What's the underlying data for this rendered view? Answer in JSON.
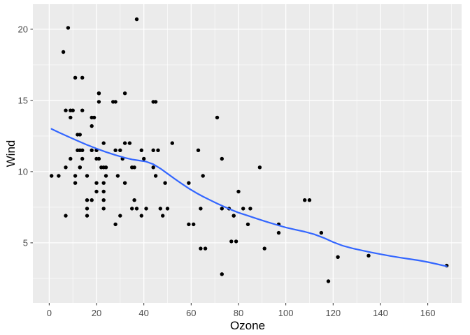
{
  "figure": {
    "x_title": "Ozone",
    "y_title": "Wind",
    "colors": {
      "background": "#FFFFFF",
      "panel_background": "#EBEBEB",
      "grid_major": "#FFFFFF",
      "grid_minor": "#F5F5F5",
      "point": "#000000",
      "smooth_line": "#3366FF",
      "tick_mark": "#333333",
      "tick_label": "#4D4D4D"
    }
  },
  "chart_data": {
    "type": "scatter",
    "title": "",
    "xlabel": "Ozone",
    "ylabel": "Wind",
    "legend": "none",
    "grid": "on",
    "x_ticks": [
      0,
      20,
      40,
      60,
      80,
      100,
      120,
      140,
      160
    ],
    "x_minor_ticks": [
      10,
      30,
      50,
      70,
      90,
      110,
      130,
      150,
      170
    ],
    "y_ticks": [
      5,
      10,
      15,
      20
    ],
    "y_minor_ticks": [
      2.5,
      7.5,
      12.5,
      17.5
    ],
    "xlim": [
      -6.9,
      174.3
    ],
    "ylim": [
      0.78,
      21.76
    ],
    "points": [
      [
        41,
        7.4
      ],
      [
        36,
        8.0
      ],
      [
        12,
        12.6
      ],
      [
        18,
        11.5
      ],
      [
        28,
        14.9
      ],
      [
        23,
        8.6
      ],
      [
        19,
        13.8
      ],
      [
        8,
        20.1
      ],
      [
        7,
        6.9
      ],
      [
        16,
        9.7
      ],
      [
        11,
        9.2
      ],
      [
        14,
        10.9
      ],
      [
        18,
        13.2
      ],
      [
        14,
        11.5
      ],
      [
        34,
        12.0
      ],
      [
        6,
        18.4
      ],
      [
        30,
        11.5
      ],
      [
        11,
        9.7
      ],
      [
        1,
        9.7
      ],
      [
        11,
        16.6
      ],
      [
        4,
        9.7
      ],
      [
        32,
        12.0
      ],
      [
        23,
        12.0
      ],
      [
        45,
        14.9
      ],
      [
        115,
        5.7
      ],
      [
        37,
        7.4
      ],
      [
        29,
        9.7
      ],
      [
        71,
        13.8
      ],
      [
        39,
        11.5
      ],
      [
        23,
        8.0
      ],
      [
        21,
        14.9
      ],
      [
        37,
        20.7
      ],
      [
        20,
        9.2
      ],
      [
        12,
        11.5
      ],
      [
        13,
        10.3
      ],
      [
        135,
        4.1
      ],
      [
        49,
        9.2
      ],
      [
        32,
        9.2
      ],
      [
        64,
        4.6
      ],
      [
        40,
        10.9
      ],
      [
        77,
        5.1
      ],
      [
        97,
        6.3
      ],
      [
        97,
        5.7
      ],
      [
        85,
        7.4
      ],
      [
        10,
        14.3
      ],
      [
        27,
        14.9
      ],
      [
        7,
        14.3
      ],
      [
        48,
        6.9
      ],
      [
        35,
        10.3
      ],
      [
        61,
        6.3
      ],
      [
        79,
        5.1
      ],
      [
        63,
        11.5
      ],
      [
        16,
        6.9
      ],
      [
        80,
        8.6
      ],
      [
        108,
        8.0
      ],
      [
        20,
        8.6
      ],
      [
        52,
        12.0
      ],
      [
        82,
        7.4
      ],
      [
        50,
        7.4
      ],
      [
        64,
        7.4
      ],
      [
        59,
        9.2
      ],
      [
        39,
        6.9
      ],
      [
        9,
        13.8
      ],
      [
        16,
        7.4
      ],
      [
        78,
        6.9
      ],
      [
        35,
        7.4
      ],
      [
        66,
        4.6
      ],
      [
        122,
        4.0
      ],
      [
        89,
        10.3
      ],
      [
        110,
        8.0
      ],
      [
        44,
        11.5
      ],
      [
        28,
        11.5
      ],
      [
        65,
        9.7
      ],
      [
        22,
        10.3
      ],
      [
        59,
        6.3
      ],
      [
        23,
        7.4
      ],
      [
        31,
        10.9
      ],
      [
        44,
        10.3
      ],
      [
        21,
        15.5
      ],
      [
        9,
        14.3
      ],
      [
        45,
        9.7
      ],
      [
        168,
        3.4
      ],
      [
        73,
        10.9
      ],
      [
        76,
        7.4
      ],
      [
        118,
        2.3
      ],
      [
        84,
        6.3
      ],
      [
        73,
        2.8
      ],
      [
        78,
        6.9
      ],
      [
        73,
        7.4
      ],
      [
        91,
        4.6
      ],
      [
        47,
        7.4
      ],
      [
        32,
        15.5
      ],
      [
        20,
        10.9
      ],
      [
        23,
        10.3
      ],
      [
        21,
        10.9
      ],
      [
        24,
        9.7
      ],
      [
        44,
        14.9
      ],
      [
        21,
        15.5
      ],
      [
        28,
        6.3
      ],
      [
        9,
        10.9
      ],
      [
        13,
        11.5
      ],
      [
        46,
        11.5
      ],
      [
        18,
        13.8
      ],
      [
        13,
        10.3
      ],
      [
        24,
        10.3
      ],
      [
        16,
        8.0
      ],
      [
        13,
        12.6
      ],
      [
        23,
        9.2
      ],
      [
        36,
        10.3
      ],
      [
        7,
        10.3
      ],
      [
        14,
        16.6
      ],
      [
        30,
        6.9
      ],
      [
        14,
        14.3
      ],
      [
        18,
        8.0
      ],
      [
        20,
        11.5
      ]
    ],
    "series": [
      {
        "name": "loess-smooth",
        "type": "line",
        "color": "#3366FF",
        "points": [
          [
            1,
            13.0
          ],
          [
            4,
            12.76
          ],
          [
            8,
            12.46
          ],
          [
            12,
            12.16
          ],
          [
            16,
            11.88
          ],
          [
            20,
            11.62
          ],
          [
            24,
            11.38
          ],
          [
            28,
            11.16
          ],
          [
            32,
            10.97
          ],
          [
            35,
            10.86
          ],
          [
            38,
            10.78
          ],
          [
            41,
            10.7
          ],
          [
            44,
            10.52
          ],
          [
            47,
            10.22
          ],
          [
            50,
            9.86
          ],
          [
            53,
            9.5
          ],
          [
            56,
            9.15
          ],
          [
            59,
            8.82
          ],
          [
            62,
            8.52
          ],
          [
            65,
            8.25
          ],
          [
            68,
            8.0
          ],
          [
            71,
            7.76
          ],
          [
            74,
            7.53
          ],
          [
            77,
            7.32
          ],
          [
            80,
            7.12
          ],
          [
            84,
            6.9
          ],
          [
            88,
            6.68
          ],
          [
            92,
            6.47
          ],
          [
            96,
            6.27
          ],
          [
            100,
            6.08
          ],
          [
            104,
            5.92
          ],
          [
            108,
            5.78
          ],
          [
            112,
            5.6
          ],
          [
            116,
            5.35
          ],
          [
            120,
            5.05
          ],
          [
            124,
            4.8
          ],
          [
            128,
            4.62
          ],
          [
            132,
            4.47
          ],
          [
            136,
            4.33
          ],
          [
            140,
            4.2
          ],
          [
            144,
            4.08
          ],
          [
            148,
            3.97
          ],
          [
            152,
            3.87
          ],
          [
            156,
            3.77
          ],
          [
            160,
            3.65
          ],
          [
            164,
            3.5
          ],
          [
            168,
            3.35
          ]
        ]
      }
    ]
  }
}
